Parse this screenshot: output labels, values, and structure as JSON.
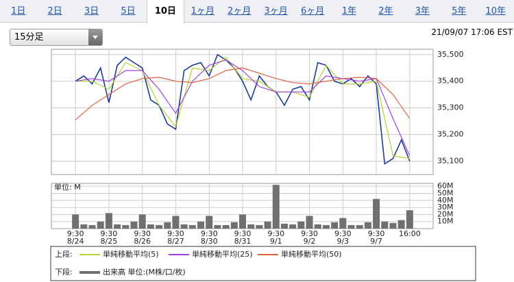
{
  "tabs": [
    "1日",
    "2日",
    "3日",
    "5日",
    "10日",
    "1ヶ月",
    "2ヶ月",
    "3ヶ月",
    "6ヶ月",
    "1年",
    "2年",
    "3年",
    "5年",
    "10年"
  ],
  "selected_tab": 4,
  "interval": "15分足",
  "timestamp": "21/09/07 17:06 EST",
  "legend": {
    "upper_label": "上段:",
    "lower_label": "下段:"
  },
  "chart_data": [
    {
      "type": "line",
      "xlim": [
        -0.72,
        10.7
      ],
      "ylim": [
        35050,
        35520
      ],
      "yticks": [
        {
          "value": 35100,
          "label": "35,100"
        },
        {
          "value": 35200,
          "label": "35,200"
        },
        {
          "value": 35300,
          "label": "35,300"
        },
        {
          "value": 35400,
          "label": "35,400"
        },
        {
          "value": 35500,
          "label": "35,500"
        }
      ],
      "xticks": [
        0,
        1,
        2,
        3,
        4,
        5,
        6,
        7,
        8,
        9,
        10
      ],
      "grid": true,
      "series": [
        {
          "color": "#1a3a9a",
          "x": [
            0,
            0.25,
            0.5,
            0.75,
            1,
            1.25,
            1.5,
            1.75,
            2,
            2.25,
            2.5,
            2.75,
            3,
            3.25,
            3.5,
            3.75,
            4,
            4.25,
            4.5,
            4.75,
            5,
            5.25,
            5.5,
            5.75,
            6,
            6.25,
            6.5,
            6.75,
            7,
            7.25,
            7.5,
            7.75,
            8,
            8.25,
            8.5,
            8.75,
            9,
            9.25,
            9.5,
            9.75,
            10
          ],
          "values": [
            35400,
            35420,
            35390,
            35450,
            35320,
            35460,
            35490,
            35470,
            35450,
            35330,
            35310,
            35240,
            35220,
            35440,
            35460,
            35470,
            35420,
            35500,
            35480,
            35450,
            35400,
            35330,
            35420,
            35380,
            35360,
            35310,
            35370,
            35380,
            35330,
            35470,
            35460,
            35400,
            35390,
            35410,
            35380,
            35420,
            35390,
            35090,
            35110,
            35180,
            35100
          ]
        },
        {
          "name": "単純移動平均(5)",
          "color": "#b8d030",
          "x": [
            0,
            0.5,
            1,
            1.5,
            2,
            2.5,
            3,
            3.5,
            4,
            4.5,
            5,
            5.5,
            6,
            6.5,
            7,
            7.5,
            8,
            8.5,
            9,
            9.5,
            10
          ],
          "values": [
            35400,
            35400,
            35370,
            35470,
            35440,
            35310,
            35230,
            35450,
            35440,
            35490,
            35410,
            35400,
            35360,
            35360,
            35340,
            35460,
            35390,
            35390,
            35400,
            35120,
            35110
          ]
        },
        {
          "name": "単純移動平均(25)",
          "color": "#a040e0",
          "x": [
            0,
            0.5,
            1,
            1.5,
            2,
            2.5,
            3,
            3.5,
            4,
            4.5,
            5,
            5.5,
            6,
            6.5,
            7,
            7.5,
            8,
            8.5,
            9,
            9.5,
            10
          ],
          "values": [
            35400,
            35410,
            35400,
            35440,
            35440,
            35370,
            35280,
            35400,
            35460,
            35480,
            35440,
            35380,
            35360,
            35360,
            35360,
            35420,
            35410,
            35400,
            35410,
            35260,
            35120
          ]
        },
        {
          "name": "単純移動平均(50)",
          "color": "#e06040",
          "x": [
            0,
            0.5,
            1,
            1.5,
            2,
            2.5,
            3,
            3.5,
            4,
            4.5,
            5,
            5.5,
            6,
            6.5,
            7,
            7.5,
            8,
            8.5,
            9,
            9.5,
            10
          ],
          "values": [
            35255,
            35310,
            35350,
            35390,
            35410,
            35415,
            35400,
            35395,
            35410,
            35440,
            35450,
            35430,
            35410,
            35395,
            35390,
            35400,
            35410,
            35415,
            35410,
            35350,
            35260
          ]
        }
      ]
    },
    {
      "type": "bar",
      "unit_label": "単位: M",
      "xlim": [
        -0.72,
        10.7
      ],
      "ylim": [
        0,
        64
      ],
      "yticks": [
        {
          "value": 10,
          "label": "10M"
        },
        {
          "value": 20,
          "label": "20M"
        },
        {
          "value": 30,
          "label": "30M"
        },
        {
          "value": 40,
          "label": "40M"
        },
        {
          "value": 50,
          "label": "50M"
        },
        {
          "value": 60,
          "label": "60M"
        }
      ],
      "xticks": [
        {
          "value": 0,
          "label": "9:30",
          "date": "8/24"
        },
        {
          "value": 1,
          "label": "9:30",
          "date": "8/25"
        },
        {
          "value": 2,
          "label": "9:30",
          "date": "8/26"
        },
        {
          "value": 3,
          "label": "9:30",
          "date": "8/27"
        },
        {
          "value": 4,
          "label": "9:30",
          "date": "8/30"
        },
        {
          "value": 5,
          "label": "9:30",
          "date": "8/31"
        },
        {
          "value": 6,
          "label": "9:30",
          "date": "9/1"
        },
        {
          "value": 7,
          "label": "9:30",
          "date": "9/2"
        },
        {
          "value": 8,
          "label": "9:30",
          "date": "9/3"
        },
        {
          "value": 9,
          "label": "9:30",
          "date": "9/7"
        },
        {
          "value": 10,
          "label": "16:00"
        }
      ],
      "grid": true,
      "series": [
        {
          "name": "出来高 単位:(M株/口/枚)",
          "color": "#707070",
          "x": [
            0,
            0.25,
            0.5,
            0.75,
            1,
            1.25,
            1.5,
            1.75,
            2,
            2.25,
            2.5,
            2.75,
            3,
            3.25,
            3.5,
            3.75,
            4,
            4.25,
            4.5,
            4.75,
            5,
            5.25,
            5.5,
            5.75,
            6,
            6.25,
            6.5,
            6.75,
            7,
            7.25,
            7.5,
            7.75,
            8,
            8.25,
            8.5,
            8.75,
            9,
            9.25,
            9.5,
            9.75,
            10
          ],
          "values": [
            20,
            6,
            5,
            10,
            22,
            6,
            5,
            10,
            20,
            6,
            5,
            9,
            18,
            6,
            5,
            10,
            18,
            5,
            5,
            9,
            20,
            6,
            5,
            10,
            62,
            7,
            6,
            10,
            18,
            6,
            5,
            9,
            15,
            5,
            5,
            9,
            42,
            10,
            8,
            12,
            26
          ]
        }
      ]
    }
  ]
}
